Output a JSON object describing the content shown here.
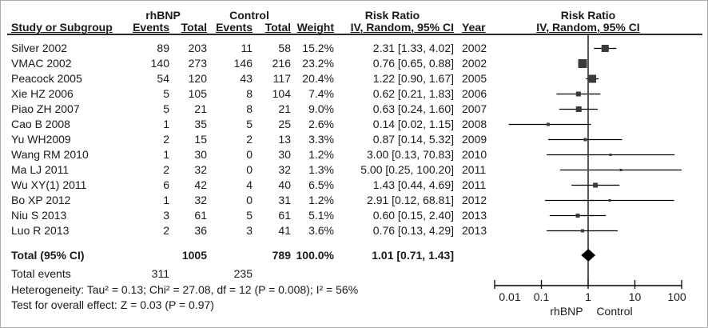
{
  "meta": {
    "background_color": "#ffffff",
    "text_color": "#1a1a1a",
    "line_color": "#000000",
    "marker_color": "#3a3a3a"
  },
  "header": {
    "group1": "rhBNP",
    "group2": "Control",
    "risk_ratio": "Risk Ratio",
    "study_col": "Study or Subgroup",
    "events_col": "Events",
    "total_col": "Total",
    "weight_col": "Weight",
    "ci_col": "IV, Random, 95% CI",
    "year_col": "Year"
  },
  "chart_data": {
    "type": "forest",
    "x_scale": "log10",
    "xlim": [
      0.01,
      100
    ],
    "null_value": 1,
    "ticks": [
      "0.01",
      "0.1",
      "1",
      "10",
      "100"
    ],
    "tick_values": [
      0.01,
      0.1,
      1,
      10,
      100
    ],
    "left_label": "rhBNP",
    "right_label": "Control",
    "effect_measure": "Risk Ratio",
    "method": "IV, Random, 95% CI",
    "studies": [
      {
        "name": "Silver 2002",
        "events1": "89",
        "total1": "203",
        "events2": "11",
        "total2": "58",
        "weight": "15.2%",
        "rr": 2.31,
        "lo": 1.33,
        "hi": 4.02,
        "ci_text": "2.31 [1.33, 4.02]",
        "year": "2002"
      },
      {
        "name": "VMAC 2002",
        "events1": "140",
        "total1": "273",
        "events2": "146",
        "total2": "216",
        "weight": "23.2%",
        "rr": 0.76,
        "lo": 0.65,
        "hi": 0.88,
        "ci_text": "0.76 [0.65, 0.88]",
        "year": "2002"
      },
      {
        "name": "Peacock 2005",
        "events1": "54",
        "total1": "120",
        "events2": "43",
        "total2": "117",
        "weight": "20.4%",
        "rr": 1.22,
        "lo": 0.9,
        "hi": 1.67,
        "ci_text": "1.22 [0.90, 1.67]",
        "year": "2005"
      },
      {
        "name": "Xie HZ 2006",
        "events1": "5",
        "total1": "105",
        "events2": "8",
        "total2": "104",
        "weight": "7.4%",
        "rr": 0.62,
        "lo": 0.21,
        "hi": 1.83,
        "ci_text": "0.62 [0.21, 1.83]",
        "year": "2006"
      },
      {
        "name": "Piao ZH 2007",
        "events1": "5",
        "total1": "21",
        "events2": "8",
        "total2": "21",
        "weight": "9.0%",
        "rr": 0.63,
        "lo": 0.24,
        "hi": 1.6,
        "ci_text": "0.63 [0.24, 1.60]",
        "year": "2007"
      },
      {
        "name": "Cao B 2008",
        "events1": "1",
        "total1": "35",
        "events2": "5",
        "total2": "25",
        "weight": "2.6%",
        "rr": 0.14,
        "lo": 0.02,
        "hi": 1.15,
        "ci_text": "0.14 [0.02, 1.15]",
        "year": "2008"
      },
      {
        "name": "Yu WH2009",
        "events1": "2",
        "total1": "15",
        "events2": "2",
        "total2": "13",
        "weight": "3.3%",
        "rr": 0.87,
        "lo": 0.14,
        "hi": 5.32,
        "ci_text": "0.87 [0.14, 5.32]",
        "year": "2009"
      },
      {
        "name": "Wang RM 2010",
        "events1": "1",
        "total1": "30",
        "events2": "0",
        "total2": "30",
        "weight": "1.2%",
        "rr": 3.0,
        "lo": 0.13,
        "hi": 70.83,
        "ci_text": "3.00 [0.13, 70.83]",
        "year": "2010"
      },
      {
        "name": "Ma LJ 2011",
        "events1": "2",
        "total1": "32",
        "events2": "0",
        "total2": "32",
        "weight": "1.3%",
        "rr": 5.0,
        "lo": 0.25,
        "hi": 100.2,
        "ci_text": "5.00 [0.25, 100.20]",
        "year": "2011"
      },
      {
        "name": "Wu XY(1) 2011",
        "events1": "6",
        "total1": "42",
        "events2": "4",
        "total2": "40",
        "weight": "6.5%",
        "rr": 1.43,
        "lo": 0.44,
        "hi": 4.69,
        "ci_text": "1.43 [0.44, 4.69]",
        "year": "2011"
      },
      {
        "name": "Bo XP 2012",
        "events1": "1",
        "total1": "32",
        "events2": "0",
        "total2": "31",
        "weight": "1.2%",
        "rr": 2.91,
        "lo": 0.12,
        "hi": 68.81,
        "ci_text": "2.91 [0.12, 68.81]",
        "year": "2012"
      },
      {
        "name": "Niu S 2013",
        "events1": "3",
        "total1": "61",
        "events2": "5",
        "total2": "61",
        "weight": "5.1%",
        "rr": 0.6,
        "lo": 0.15,
        "hi": 2.4,
        "ci_text": "0.60 [0.15, 2.40]",
        "year": "2013"
      },
      {
        "name": "Luo R 2013",
        "events1": "2",
        "total1": "36",
        "events2": "3",
        "total2": "41",
        "weight": "3.6%",
        "rr": 0.76,
        "lo": 0.13,
        "hi": 4.29,
        "ci_text": "0.76 [0.13, 4.29]",
        "year": "2013"
      }
    ],
    "total": {
      "label": "Total (95% CI)",
      "total1": "1005",
      "total2": "789",
      "weight": "100.0%",
      "rr": 1.01,
      "lo": 0.71,
      "hi": 1.43,
      "ci_text": "1.01 [0.71, 1.43]"
    },
    "total_events": {
      "label": "Total events",
      "events1": "311",
      "events2": "235"
    },
    "heterogeneity": "Heterogeneity: Tau² = 0.13; Chi² = 27.08, df = 12 (P = 0.008); I² = 56%",
    "overall_effect": "Test for overall effect: Z = 0.03 (P = 0.97)"
  }
}
